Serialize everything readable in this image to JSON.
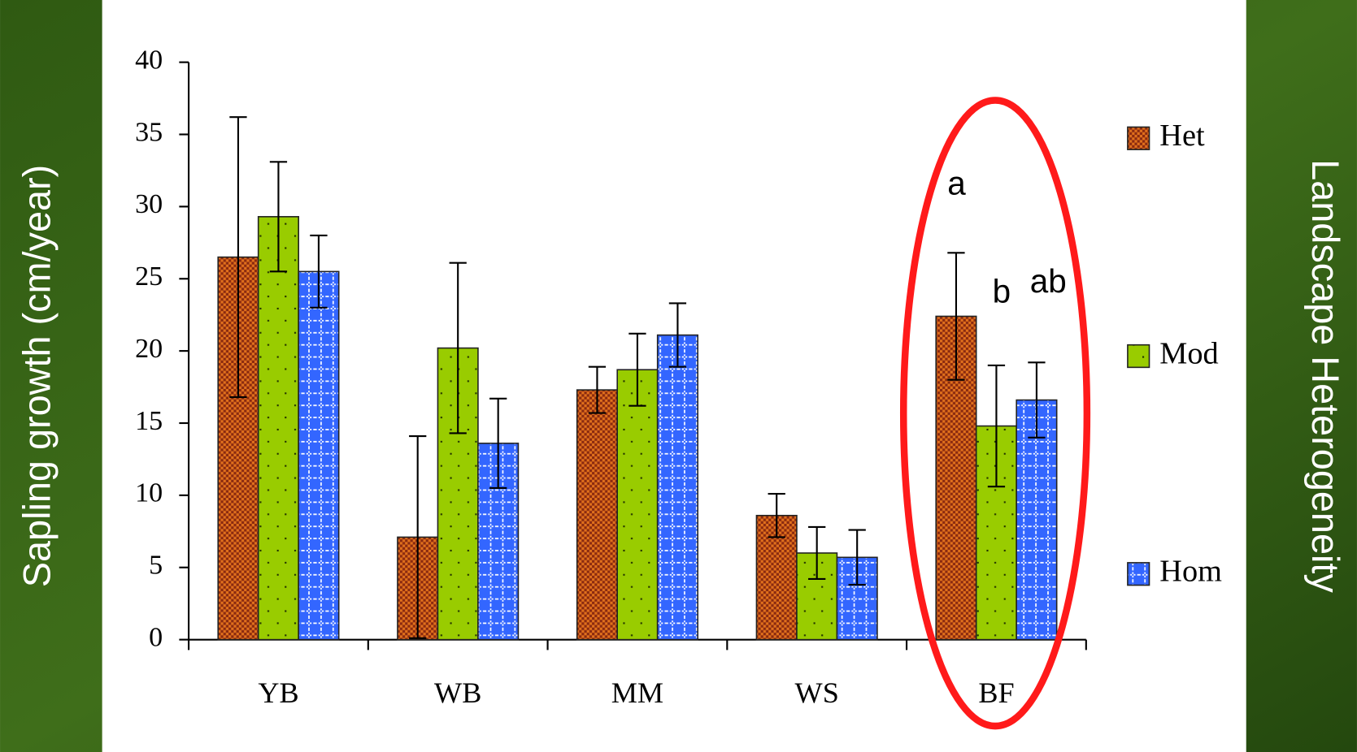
{
  "chart_data": {
    "type": "bar",
    "title": null,
    "y_label": "Sapling growth (cm/year)",
    "legend_title": "Landscape Heterogeneity",
    "categories": [
      "YB",
      "WB",
      "MM",
      "WS",
      "BF"
    ],
    "series": [
      {
        "name": "Het",
        "color": "#e0701c",
        "values": [
          26.5,
          7.1,
          17.3,
          8.6,
          22.4
        ],
        "errors": [
          9.7,
          7.0,
          1.6,
          1.5,
          4.4
        ]
      },
      {
        "name": "Mod",
        "color": "#99cc00",
        "values": [
          29.3,
          20.2,
          18.7,
          6.0,
          14.8
        ],
        "errors": [
          3.8,
          5.9,
          2.5,
          1.8,
          4.2
        ]
      },
      {
        "name": "Hom",
        "color": "#3366ff",
        "values": [
          25.5,
          13.6,
          21.1,
          5.7,
          16.6
        ],
        "errors": [
          2.5,
          3.1,
          2.2,
          1.9,
          2.6
        ]
      }
    ],
    "annotations": [
      "a",
      "b",
      "ab"
    ],
    "ylim": [
      0,
      40
    ],
    "yticks": [
      0,
      5,
      10,
      15,
      20,
      25,
      30,
      35,
      40
    ],
    "legend": "right",
    "grid": false
  }
}
